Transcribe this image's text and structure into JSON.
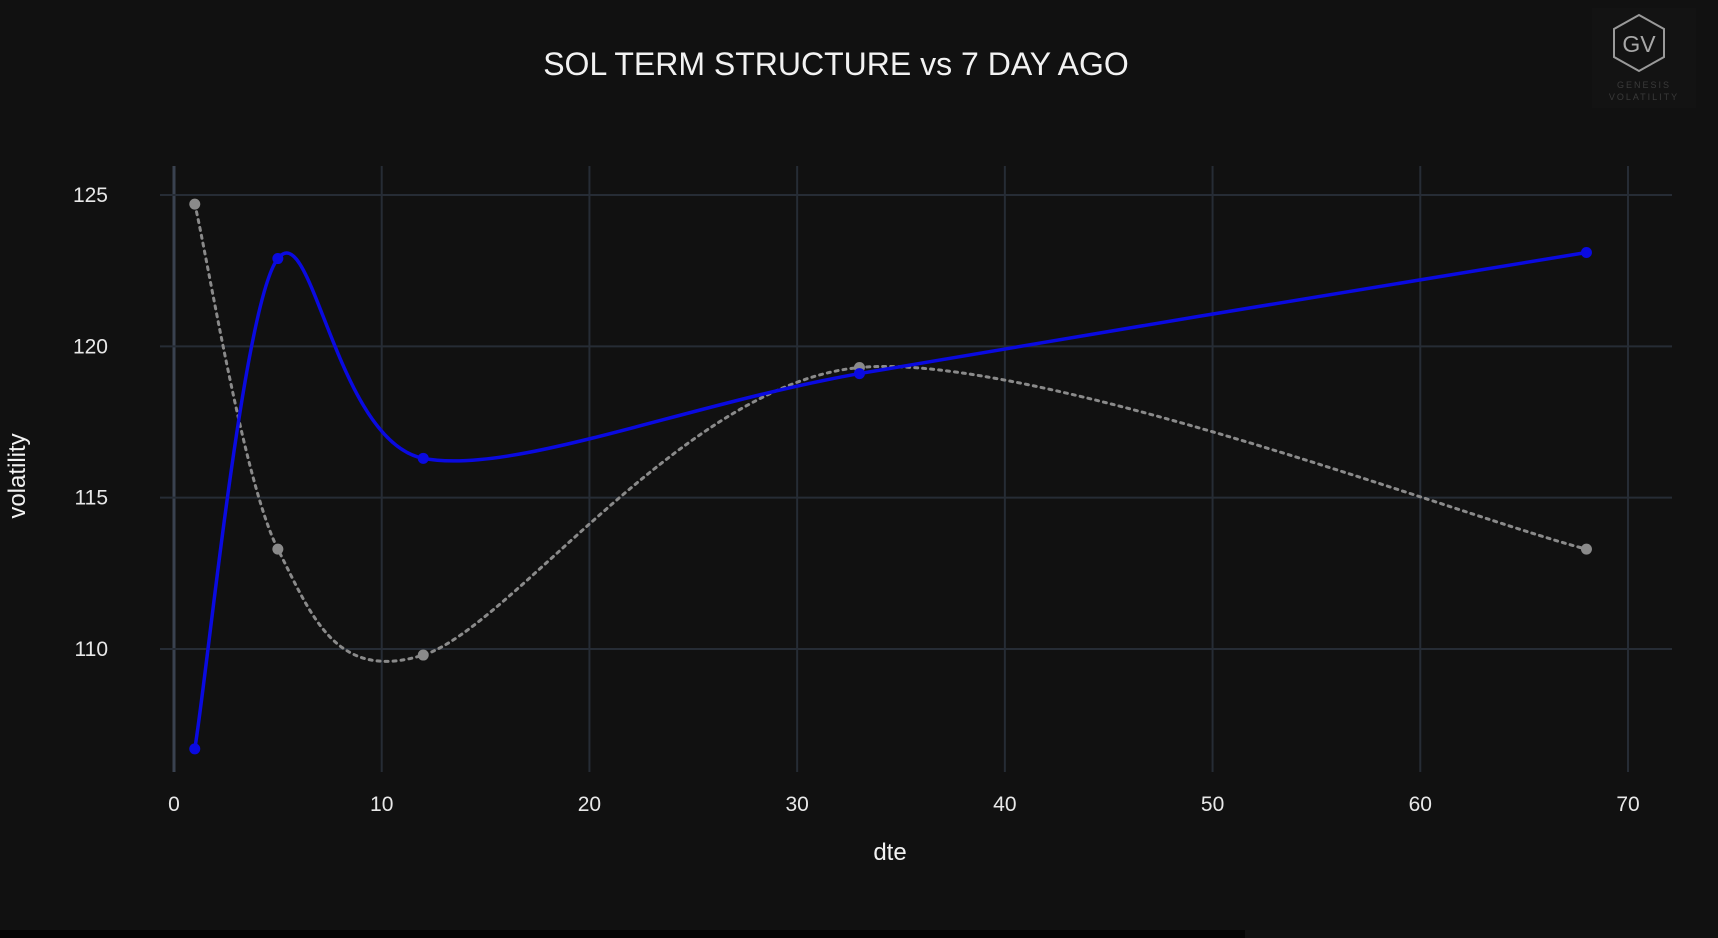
{
  "chart_data": {
    "type": "line",
    "title": "SOL TERM STRUCTURE vs 7 DAY AGO",
    "xlabel": "dte",
    "ylabel": "volatility",
    "xlim": [
      0,
      72
    ],
    "ylim": [
      106.2,
      126
    ],
    "x_ticks": [
      0,
      10,
      20,
      30,
      40,
      50,
      60,
      70
    ],
    "y_ticks": [
      110,
      115,
      120,
      125
    ],
    "grid": true,
    "legend": "none",
    "series": [
      {
        "color": "#0a0ae0",
        "style": "solid",
        "points": [
          [
            1,
            106.7
          ],
          [
            5,
            122.9
          ],
          [
            12,
            116.3
          ],
          [
            33,
            119.1
          ],
          [
            68,
            123.1
          ]
        ]
      },
      {
        "color": "#8a8a8a",
        "style": "dotted",
        "points": [
          [
            1,
            124.7
          ],
          [
            5,
            113.3
          ],
          [
            12,
            109.8
          ],
          [
            33,
            119.3
          ],
          [
            68,
            113.3
          ]
        ]
      }
    ]
  },
  "watermark": {
    "monogram": "GV",
    "line1": "GENESIS",
    "line2": "VOLATILITY"
  }
}
